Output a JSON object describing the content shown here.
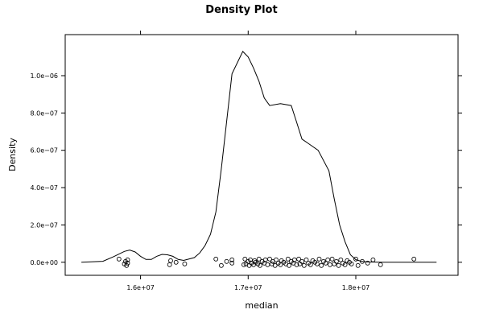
{
  "chart_data": {
    "type": "line",
    "title": "Density Plot",
    "xlabel": "median",
    "ylabel": "Density",
    "xlim": [
      15300000,
      18950000
    ],
    "ylim": [
      -7e-08,
      1.22e-06
    ],
    "x_ticks": [
      {
        "value": 16000000,
        "label": "1.6e+07"
      },
      {
        "value": 17000000,
        "label": "1.7e+07"
      },
      {
        "value": 18000000,
        "label": "1.8e+07"
      }
    ],
    "y_ticks": [
      {
        "value": 0,
        "label": "0.0e+00"
      },
      {
        "value": 2e-07,
        "label": "2.0e−07"
      },
      {
        "value": 4e-07,
        "label": "4.0e−07"
      },
      {
        "value": 6e-07,
        "label": "6.0e−07"
      },
      {
        "value": 8e-07,
        "label": "8.0e−07"
      },
      {
        "value": 1e-06,
        "label": "1.0e−06"
      }
    ],
    "grid": false,
    "series": [
      {
        "x": [
          15450000,
          15650000,
          15750000,
          15850000,
          15900000,
          15950000,
          16000000,
          16050000,
          16100000,
          16150000,
          16200000,
          16250000,
          16300000,
          16350000,
          16400000,
          16500000,
          16550000,
          16600000,
          16650000,
          16700000,
          16750000,
          16850000,
          16950000,
          17000000,
          17050000,
          17100000,
          17150000,
          17200000,
          17300000,
          17400000,
          17450000,
          17500000,
          17550000,
          17650000,
          17750000,
          17800000,
          17850000,
          17900000,
          17950000,
          18000000,
          18050000,
          18100000,
          18150000,
          18250000,
          18400000,
          18500000,
          18580000,
          18750000
        ],
        "y": [
          0,
          5e-09,
          3e-08,
          5.8e-08,
          6.5e-08,
          5.5e-08,
          3.2e-08,
          1.5e-08,
          1.5e-08,
          3.2e-08,
          4.2e-08,
          4e-08,
          3.2e-08,
          1.5e-08,
          1e-08,
          2.5e-08,
          5e-08,
          9e-08,
          1.5e-07,
          2.7e-07,
          5e-07,
          1.01e-06,
          1.13e-06,
          1.1e-06,
          1.04e-06,
          9.7e-07,
          8.8e-07,
          8.4e-07,
          8.5e-07,
          8.4e-07,
          7.5e-07,
          6.6e-07,
          6.4e-07,
          6e-07,
          4.9e-07,
          3.4e-07,
          2e-07,
          1.1e-07,
          4e-08,
          1.4e-08,
          5e-09,
          2e-09,
          1e-09,
          0,
          0,
          0,
          0,
          0
        ]
      }
    ],
    "rug": [
      15800000,
      15850000,
      15860000,
      15870000,
      15880000,
      15880000,
      16270000,
      16280000,
      16330000,
      16410000,
      16700000,
      16750000,
      16800000,
      16850000,
      16850000,
      16960000,
      16970000,
      16980000,
      17000000,
      17010000,
      17020000,
      17030000,
      17050000,
      17060000,
      17070000,
      17090000,
      17100000,
      17110000,
      17130000,
      17150000,
      17160000,
      17180000,
      17200000,
      17220000,
      17230000,
      17250000,
      17260000,
      17280000,
      17300000,
      17310000,
      17330000,
      17350000,
      17370000,
      17380000,
      17400000,
      17420000,
      17430000,
      17450000,
      17470000,
      17480000,
      17500000,
      17520000,
      17540000,
      17560000,
      17580000,
      17600000,
      17620000,
      17640000,
      17660000,
      17680000,
      17700000,
      17720000,
      17740000,
      17760000,
      17780000,
      17800000,
      17820000,
      17840000,
      17860000,
      17880000,
      17900000,
      17920000,
      17940000,
      17960000,
      18000000,
      18020000,
      18060000,
      18110000,
      18160000,
      18230000,
      18540000
    ]
  }
}
